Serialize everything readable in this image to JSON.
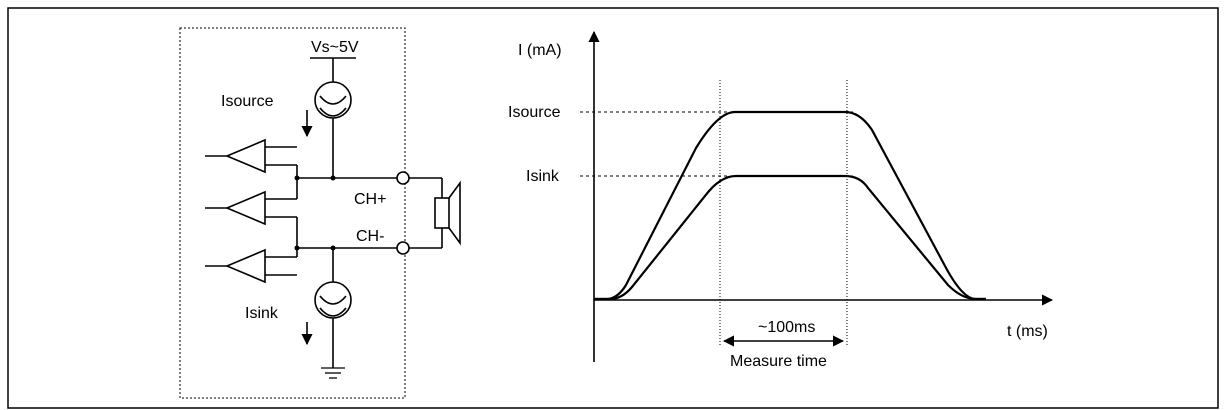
{
  "circuit": {
    "supply_label": "Vs~5V",
    "isource_label": "Isource",
    "isink_label": "Isink",
    "ch_plus_label": "CH+",
    "ch_minus_label": "CH-"
  },
  "plot": {
    "y_axis_label": "I (mA)",
    "x_axis_label": "t (ms)",
    "isource_level_label": "Isource",
    "isink_level_label": "Isink",
    "interval_label": "~100ms",
    "measure_label": "Measure time"
  }
}
